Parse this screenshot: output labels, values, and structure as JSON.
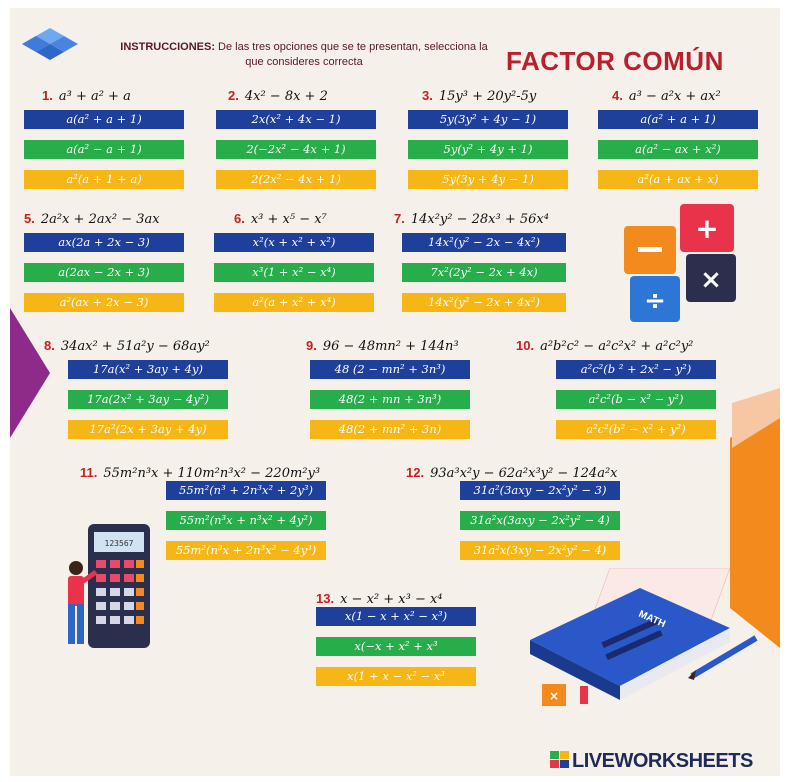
{
  "header": {
    "instructions_label": "INSTRUCCIONES:",
    "instructions_text": " De las tres opciones que se te presentan, selecciona la que consideres correcta",
    "title": "FACTOR COMÚN"
  },
  "colors": {
    "blue": "#1e3f9a",
    "green": "#27ae4a",
    "yellow": "#f6b716",
    "red": "#c62020",
    "orange": "#f28a1e"
  },
  "exercises": [
    {
      "num": "1.",
      "expr": "a³ + a² + a",
      "options": [
        "a(a² + a + 1)",
        "a(a² − a + 1)",
        "a²(a + 1 + a)"
      ]
    },
    {
      "num": "2.",
      "expr": "4x² − 8x + 2",
      "options": [
        "2x(x² + 4x − 1)",
        "2(−2x² − 4x + 1)",
        "2(2x² − 4x + 1)"
      ]
    },
    {
      "num": "3.",
      "expr": "15y³ + 20y²-5y",
      "options": [
        "5y(3y² + 4y − 1)",
        "5y(y² + 4y + 1)",
        "5y(3y + 4y − 1)"
      ]
    },
    {
      "num": "4.",
      "expr": "a³ − a²x + ax²",
      "options": [
        "a(a² + a + 1)",
        "a(a² − ax + x²)",
        "a²(a + ax + x)"
      ]
    },
    {
      "num": "5.",
      "expr": "2a²x + 2ax² − 3ax",
      "options": [
        "ax(2a + 2x − 3)",
        "a(2ax − 2x + 3)",
        "a²(ax + 2x − 3)"
      ]
    },
    {
      "num": "6.",
      "expr": "x³ + x⁵ − x⁷",
      "options": [
        "x²(x + x² + x²)",
        "x³(1 + x² − x⁴)",
        "a²(a + x² + x⁴)"
      ]
    },
    {
      "num": "7.",
      "expr": "14x²y² − 28x³ + 56x⁴",
      "options": [
        "14x²(y² − 2x − 4x²)",
        "7x²(2y² − 2x + 4x)",
        "14x²(y² − 2x + 4x²)"
      ]
    },
    {
      "num": "8.",
      "expr": "34ax² + 51a²y − 68ay²",
      "options": [
        "17a(x² + 3ay + 4y)",
        "17a(2x² + 3ay − 4y²)",
        "17a²(2x + 3ay + 4y)"
      ]
    },
    {
      "num": "9.",
      "expr": "96 − 48mn² + 144n³",
      "options": [
        "48 (2 − mn² + 3n³)",
        "48(2 + mn + 3n³)",
        "48(2 + mn² + 3n)"
      ]
    },
    {
      "num": "10.",
      "expr": "a²b²c² − a²c²x² + a²c²y²",
      "options": [
        "a²c²(b ² + 2x² − y²)",
        "a²c²(b − x² − y²)",
        "a²c²(b² − x² + y²)"
      ]
    },
    {
      "num": "11.",
      "expr": "55m²n³x + 110m²n³x² − 220m²y³",
      "options": [
        "55m²(n³ + 2n³x² + 2y³)",
        "55m²(n³x + n³x² + 4y²)",
        "55m²(n³x + 2n³x² − 4y³)"
      ]
    },
    {
      "num": "12.",
      "expr": "93a³x²y − 62a²x³y² − 124a²x",
      "options": [
        "31a²(3axy − 2x²y² − 3)",
        "31a²x(3axy − 2x²y² − 4)",
        "31a²x(3xy − 2x²y² − 4)"
      ]
    },
    {
      "num": "13.",
      "expr": "x − x² + x³ − x⁴",
      "options": [
        "x(1 − x + x² − x³)",
        "x(−x + x² + x³",
        "x(1 + x − x² − x³"
      ]
    }
  ],
  "decor": {
    "calc_keys": [
      "+",
      "−",
      "×",
      "÷"
    ],
    "calculator_display": "123567",
    "book_label": "MATH",
    "cube_label": "×"
  },
  "footer": {
    "brand": "LIVEWORKSHEETS"
  }
}
